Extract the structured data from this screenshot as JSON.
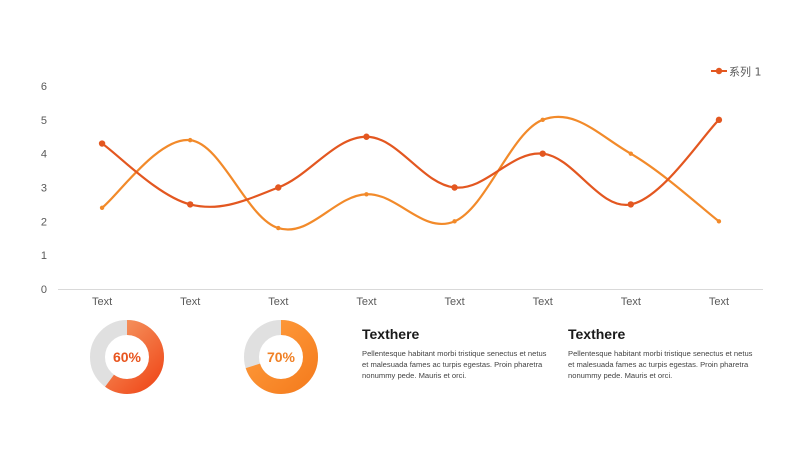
{
  "chart_data": {
    "type": "line",
    "categories": [
      "Text",
      "Text",
      "Text",
      "Text",
      "Text",
      "Text",
      "Text",
      "Text"
    ],
    "series": [
      {
        "name": "系列 1",
        "values": [
          4.3,
          2.5,
          3.0,
          4.5,
          3.0,
          4.0,
          2.5,
          5.0
        ],
        "color": "#e35720"
      },
      {
        "values": [
          2.4,
          4.4,
          1.8,
          2.8,
          2.0,
          5.0,
          4.0,
          2.0
        ],
        "color": "#f28a2a"
      }
    ],
    "ylim": [
      0,
      6
    ],
    "yticks": [
      0,
      1,
      2,
      3,
      4,
      5,
      6
    ],
    "grid": false,
    "legend_position": "top-right",
    "smooth": true
  },
  "donuts": [
    {
      "percent": 60,
      "label": "60%",
      "colors": [
        "#f04a1b",
        "#f5a06a"
      ],
      "track": "#e0e0e0",
      "text_color": "#e8541e"
    },
    {
      "percent": 70,
      "label": "70%",
      "colors": [
        "#f57d1f",
        "#ff9d3d"
      ],
      "track": "#e0e0e0",
      "text_color": "#f08025"
    }
  ],
  "text_blocks": [
    {
      "title": "Texthere",
      "body": "Pellentesque habitant morbi tristique senectus et netus et malesuada fames ac turpis egestas. Proin pharetra nonummy pede. Mauris et orci."
    },
    {
      "title": "Texthere",
      "body": "Pellentesque habitant morbi tristique senectus et netus et malesuada fames ac turpis egestas. Proin pharetra nonummy pede. Mauris et orci."
    }
  ]
}
